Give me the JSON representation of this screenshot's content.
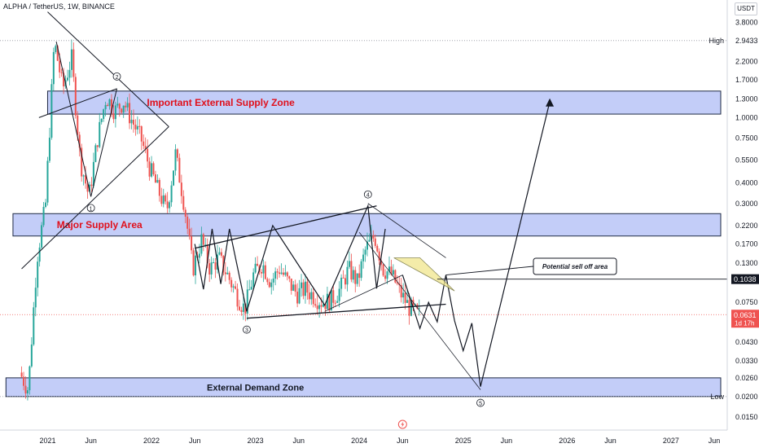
{
  "header": {
    "symbol_line": "ALPHA / TetherUS, 1W, BINANCE",
    "currency_badge": "USDT"
  },
  "price_axis": {
    "high_label": "High",
    "high_value": "2.9433",
    "low_label": "Low",
    "low_value": "0.0200",
    "current_price": "0.0631",
    "countdown": "1d 17h",
    "level_price": "0.1038"
  },
  "chart_data": {
    "type": "candlestick",
    "title": "",
    "y_scale": "log",
    "ylim": [
      0.0125,
      5.2
    ],
    "y_ticks": [
      "3.8000",
      "2.2000",
      "1.7000",
      "1.3000",
      "1.0000",
      "0.7500",
      "0.5500",
      "0.4000",
      "0.3000",
      "0.2200",
      "0.1700",
      "0.1300",
      "0.0750",
      "0.0430",
      "0.0330",
      "0.0260",
      "0.0150"
    ],
    "x_ticks": [
      "2021",
      "Jun",
      "2022",
      "Jun",
      "2023",
      "Jun",
      "2024",
      "Jun",
      "2025",
      "Jun",
      "2026",
      "Jun",
      "2027",
      "Jun"
    ],
    "x_tick_dates": [
      "2021-01",
      "2021-06",
      "2022-01",
      "2022-06",
      "2023-01",
      "2023-06",
      "2024-01",
      "2024-06",
      "2025-01",
      "2025-06",
      "2026-01",
      "2026-06",
      "2027-01",
      "2027-06"
    ],
    "xlim": [
      "2020-08",
      "2027-08"
    ],
    "candle_colors": {
      "up": "#26a69a",
      "down": "#ef5350"
    },
    "price_path": [
      [
        "2020-10",
        0.028
      ],
      [
        "2020-11",
        0.022
      ],
      [
        "2020-12",
        0.14
      ],
      [
        "2021-01",
        0.3
      ],
      [
        "2021-02",
        2.9
      ],
      [
        "2021-03",
        1.5
      ],
      [
        "2021-04",
        2.3
      ],
      [
        "2021-05",
        0.55
      ],
      [
        "2021-06",
        0.33
      ],
      [
        "2021-07",
        0.75
      ],
      [
        "2021-08",
        1.35
      ],
      [
        "2021-09",
        1.1
      ],
      [
        "2021-10",
        1.25
      ],
      [
        "2021-11",
        0.95
      ],
      [
        "2021-12",
        0.75
      ],
      [
        "2022-01",
        0.5
      ],
      [
        "2022-02",
        0.36
      ],
      [
        "2022-03",
        0.27
      ],
      [
        "2022-04",
        0.6
      ],
      [
        "2022-05",
        0.3
      ],
      [
        "2022-06",
        0.12
      ],
      [
        "2022-07",
        0.18
      ],
      [
        "2022-08",
        0.12
      ],
      [
        "2022-09",
        0.14
      ],
      [
        "2022-10",
        0.11
      ],
      [
        "2022-11",
        0.085
      ],
      [
        "2022-12",
        0.068
      ],
      [
        "2023-01",
        0.11
      ],
      [
        "2023-02",
        0.13
      ],
      [
        "2023-03",
        0.1
      ],
      [
        "2023-04",
        0.12
      ],
      [
        "2023-05",
        0.1
      ],
      [
        "2023-06",
        0.085
      ],
      [
        "2023-07",
        0.09
      ],
      [
        "2023-08",
        0.082
      ],
      [
        "2023-09",
        0.075
      ],
      [
        "2023-10",
        0.078
      ],
      [
        "2023-11",
        0.09
      ],
      [
        "2023-12",
        0.12
      ],
      [
        "2024-01",
        0.1
      ],
      [
        "2024-02",
        0.16
      ],
      [
        "2024-03",
        0.19
      ],
      [
        "2024-04",
        0.12
      ],
      [
        "2024-05",
        0.11
      ],
      [
        "2024-06",
        0.085
      ],
      [
        "2024-07",
        0.07
      ],
      [
        "2024-08",
        0.063
      ]
    ],
    "zones": [
      {
        "label": "Important External Supply Zone",
        "price_low": 1.05,
        "price_high": 1.45,
        "label_color": "#e0101b"
      },
      {
        "label": "Major Supply Area",
        "price_low": 0.19,
        "price_high": 0.26,
        "label_color": "#e0101b"
      },
      {
        "label": "External Demand Zone",
        "price_low": 0.02,
        "price_high": 0.026,
        "label_color": "#131722"
      }
    ],
    "wave_labels": [
      "1",
      "2",
      "3",
      "4",
      "5"
    ],
    "annotations": [
      {
        "text": "Potential sell off area"
      }
    ],
    "current_price": 0.0631,
    "horizontal_level": 0.1038,
    "high": 2.9433,
    "low": 0.02
  }
}
